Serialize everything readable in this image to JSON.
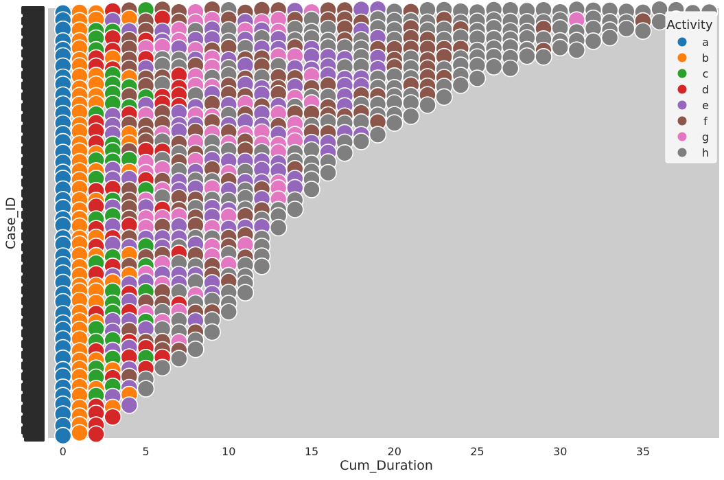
{
  "chart_data": {
    "type": "scatter",
    "xlabel": "Cum_Duration",
    "ylabel": "Case_ID",
    "xlim": [
      -0.9,
      39.6
    ],
    "x_ticks": [
      0,
      5,
      10,
      15,
      20,
      25,
      30,
      35
    ],
    "grid": false,
    "legend": {
      "title": "Activity",
      "placement": "top-right",
      "entries": [
        "a",
        "b",
        "c",
        "d",
        "e",
        "f",
        "g",
        "h"
      ]
    },
    "colors": {
      "plot_background": "#cccccc",
      "a": "#1f77b4",
      "b": "#ff7f0e",
      "c": "#2ca02c",
      "d": "#d62728",
      "e": "#9467bd",
      "f": "#8c564b",
      "g": "#e377c2",
      "h": "#7f7f7f"
    },
    "case_rows": 46,
    "case_labels_legible": false,
    "max_cum_duration_by_row": [
      2,
      2,
      3,
      4,
      4,
      5,
      5,
      6,
      7,
      8,
      8,
      9,
      9,
      10,
      10,
      11,
      11,
      11,
      12,
      12,
      12,
      12,
      13,
      13,
      14,
      14,
      15,
      15,
      16,
      16,
      17,
      18,
      19,
      20,
      21,
      22,
      23,
      24,
      25,
      27,
      29,
      31,
      33,
      35,
      37,
      39
    ],
    "activity_by_duration": [
      [
        "a"
      ],
      [
        "b"
      ],
      [
        "b",
        "c",
        "d"
      ],
      [
        "c",
        "d",
        "b",
        "e"
      ],
      [
        "d",
        "e",
        "c",
        "f",
        "b"
      ],
      [
        "e",
        "d",
        "g",
        "f",
        "c"
      ],
      [
        "f",
        "g",
        "e",
        "d",
        "h"
      ],
      [
        "g",
        "f",
        "e",
        "h",
        "d"
      ],
      [
        "f",
        "g",
        "e",
        "h"
      ],
      [
        "g",
        "e",
        "f",
        "h"
      ],
      [
        "f",
        "e",
        "g",
        "h"
      ],
      [
        "f",
        "g",
        "e",
        "h"
      ],
      [
        "g",
        "f",
        "e",
        "h"
      ],
      [
        "f",
        "g",
        "e",
        "h"
      ],
      [
        "e",
        "f",
        "g",
        "h"
      ],
      [
        "f",
        "e",
        "g",
        "h"
      ],
      [
        "e",
        "f",
        "h"
      ],
      [
        "f",
        "e",
        "h"
      ],
      [
        "f",
        "e",
        "h"
      ],
      [
        "e",
        "f",
        "h"
      ],
      [
        "f",
        "h"
      ],
      [
        "f",
        "h"
      ],
      [
        "h",
        "f"
      ],
      [
        "h",
        "f"
      ],
      [
        "f",
        "h"
      ],
      [
        "h"
      ],
      [
        "h"
      ],
      [
        "h"
      ],
      [
        "h"
      ],
      [
        "f",
        "h"
      ],
      [
        "h"
      ],
      [
        "g",
        "h"
      ],
      [
        "h"
      ],
      [
        "h"
      ],
      [
        "h"
      ],
      [
        "f",
        "h"
      ],
      [
        "h"
      ],
      [
        "h"
      ],
      [
        "h"
      ],
      [
        "h"
      ]
    ]
  }
}
